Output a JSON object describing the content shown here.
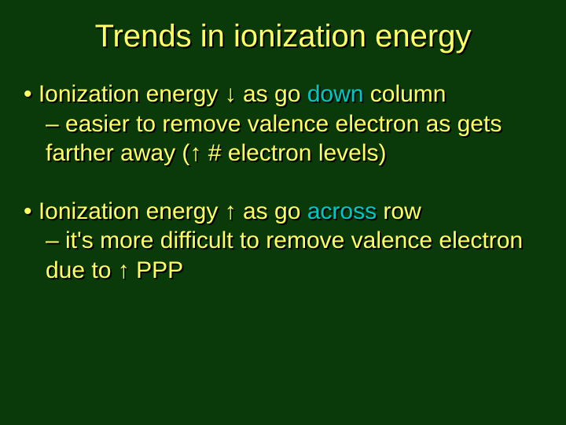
{
  "slide": {
    "background_color": "#0a3a0a",
    "text_color": "#ffff66",
    "highlight_color": "#00c6c6",
    "shadow_color": "#000000",
    "title": "Trends in ionization energy",
    "title_fontsize": 40,
    "body_fontsize": 30,
    "bullets": [
      {
        "line1_pre": "• Ionization energy ↓ as go ",
        "line1_hl": "down",
        "line1_post": " column",
        "line2": "– easier to remove valence electron as gets farther away (↑ # electron levels)"
      },
      {
        "line1_pre": "• Ionization energy ↑ as go ",
        "line1_hl": "across",
        "line1_post": " row",
        "line2": "– it's more difficult to remove  valence electron due to ↑ PPP"
      }
    ]
  }
}
